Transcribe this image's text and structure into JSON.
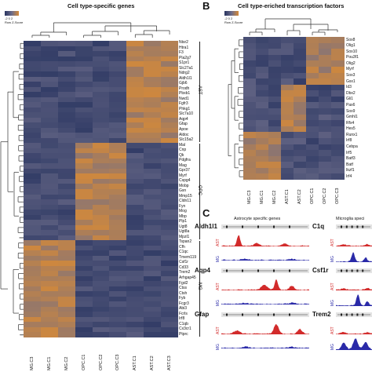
{
  "panelA": {
    "letter": "",
    "title": "Cell type-specific genes",
    "legend_title": "Row Z-Score",
    "legend_ticks": "-2  0  2",
    "columns": [
      "MG.C3",
      "MG.C1",
      "MG.C2",
      "OPC.C1",
      "OPC.C2",
      "OPC.C3",
      "AST.C1",
      "AST.C2",
      "AST.C3"
    ],
    "groups": [
      {
        "name": "AST",
        "genes": [
          "Ntsr2",
          "Htra1",
          "F3",
          "Pla2g7",
          "S1pr1",
          "Slc27a1",
          "Ndrg2",
          "Aldh1l1",
          "Gjb6",
          "Prodh",
          "Pbxb1",
          "Nwd1",
          "Fgfr3",
          "Phkg1",
          "Slc7a10",
          "Aqp4",
          "Gfap",
          "Apoe",
          "Aldoc",
          "Slc15a2"
        ]
      },
      {
        "name": "OPC",
        "genes": [
          "Mal",
          "Cnp",
          "Qk",
          "Pdgfra",
          "Mag",
          "Gpr37",
          "Myrf",
          "Cspg4",
          "Mobp",
          "Gsn",
          "Mmp15",
          "Cldn11",
          "Fyn",
          "Mog",
          "Mbp",
          "Plp1",
          "Ugt8",
          "Ugt8a",
          "Mpzl1"
        ]
      },
      {
        "name": "MG",
        "genes": [
          "Tspan2",
          "Cfh",
          "C1qc",
          "Tmem119",
          "Csf1r",
          "Cd33",
          "Trem2",
          "Arhgap45",
          "Fgd2",
          "Ctss",
          "Ctsh",
          "Fyb",
          "Fcgr3",
          "Abi3",
          "Fcrls",
          "Irf8",
          "C1qb",
          "Cx3cr1",
          "Ptprc"
        ]
      }
    ]
  },
  "panelB": {
    "letter": "B",
    "title": "Cell type-eriched transcription factors",
    "legend_title": "Row Z-Score",
    "legend_ticks": "-2  0  2",
    "columns": [
      "MG.C3",
      "MG.C1",
      "MG.C2",
      "AST.C1",
      "AST.C2",
      "OPC.C1",
      "OPC.C2",
      "OPC.C3"
    ],
    "genes": [
      "Sox8",
      "Olig1",
      "Sox10",
      "Pou3f1",
      "Olig2",
      "Myrf",
      "Sox3",
      "Gsx1",
      "Id3",
      "Dbx2",
      "Gli1",
      "Pax6",
      "Sox9",
      "Gmhl1",
      "Rfx4",
      "Hes5",
      "Runx1",
      "Irf8",
      "Cebpa",
      "Irf5",
      "Batf3",
      "Batf",
      "Ikzf1",
      "Irf4"
    ]
  },
  "panelC": {
    "letter": "C",
    "left_title": "Astrocyte specific genes",
    "right_title": "Microglia speci",
    "left_genes": [
      "Aldh1l1",
      "Aqp4",
      "Gfap"
    ],
    "right_genes": [
      "C1q",
      "Csf1r",
      "Trem2"
    ],
    "track_labels": [
      "AST",
      "MG"
    ]
  },
  "colors": {
    "low": "#27335f",
    "mid": "#6c6c8a",
    "high": "#d68a38",
    "ast_track": "#d22b2b",
    "mg_track": "#2a2aa8"
  }
}
